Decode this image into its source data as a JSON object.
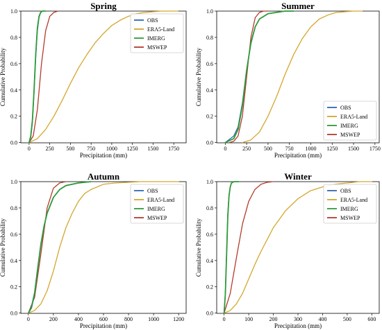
{
  "colors": {
    "OBS": "#2f66b3",
    "ERA5-Land": "#d4a62c",
    "IMERG": "#2f9a3a",
    "MSWEP": "#b33b2c"
  },
  "chart_data": [
    {
      "type": "line",
      "title": "Spring",
      "xlabel": "Precipitation (mm)",
      "ylabel": "Cumulative Probability",
      "xlim": [
        -100,
        1900
      ],
      "ylim": [
        0,
        1.0
      ],
      "xticks": [
        "0",
        "250",
        "500",
        "750",
        "1000",
        "1250",
        "1500",
        "1750"
      ],
      "xtick_values": [
        0,
        250,
        500,
        750,
        1000,
        1250,
        1500,
        1750
      ],
      "yticks": [
        "0.0",
        "0.2",
        "0.4",
        "0.6",
        "0.8",
        "1.0"
      ],
      "legend_position": "top-right",
      "series": [
        {
          "name": "OBS",
          "x": [
            0,
            20,
            40,
            60,
            80,
            100,
            120,
            140,
            160,
            200
          ],
          "y": [
            0.0,
            0.04,
            0.15,
            0.38,
            0.65,
            0.85,
            0.95,
            0.99,
            1.0,
            1.0
          ]
        },
        {
          "name": "ERA5-Land",
          "x": [
            0,
            100,
            200,
            300,
            400,
            500,
            600,
            700,
            800,
            900,
            1000,
            1100,
            1200,
            1300,
            1400,
            1500,
            1600,
            1700,
            1800
          ],
          "y": [
            0.0,
            0.03,
            0.1,
            0.2,
            0.32,
            0.45,
            0.57,
            0.67,
            0.76,
            0.83,
            0.89,
            0.93,
            0.96,
            0.98,
            0.99,
            0.995,
            1.0,
            1.0,
            1.0
          ]
        },
        {
          "name": "IMERG",
          "x": [
            0,
            20,
            40,
            60,
            80,
            100,
            120,
            140,
            160,
            200
          ],
          "y": [
            0.0,
            0.05,
            0.17,
            0.4,
            0.67,
            0.87,
            0.96,
            0.99,
            1.0,
            1.0
          ]
        },
        {
          "name": "MSWEP",
          "x": [
            0,
            50,
            100,
            150,
            200,
            250,
            300,
            350
          ],
          "y": [
            0.0,
            0.05,
            0.25,
            0.6,
            0.85,
            0.96,
            0.99,
            1.0
          ]
        }
      ]
    },
    {
      "type": "line",
      "title": "Summer",
      "xlabel": "Precipitation (mm)",
      "ylabel": "Cumulative Probability",
      "xlim": [
        -100,
        1800
      ],
      "ylim": [
        0,
        1.0
      ],
      "xticks": [
        "0",
        "250",
        "500",
        "750",
        "1000",
        "1250",
        "1500",
        "1750"
      ],
      "xtick_values": [
        0,
        250,
        500,
        750,
        1000,
        1250,
        1500,
        1750
      ],
      "yticks": [
        "0.0",
        "0.2",
        "0.4",
        "0.6",
        "0.8",
        "1.0"
      ],
      "legend_position": "bottom-right",
      "series": [
        {
          "name": "OBS",
          "x": [
            0,
            100,
            150,
            200,
            250,
            300,
            350,
            400,
            500,
            600,
            700,
            800
          ],
          "y": [
            0.0,
            0.05,
            0.12,
            0.3,
            0.55,
            0.75,
            0.88,
            0.94,
            0.98,
            0.99,
            1.0,
            1.0
          ]
        },
        {
          "name": "ERA5-Land",
          "x": [
            200,
            300,
            400,
            500,
            600,
            700,
            800,
            900,
            1000,
            1100,
            1200,
            1300,
            1400,
            1500,
            1600
          ],
          "y": [
            0.0,
            0.02,
            0.08,
            0.2,
            0.35,
            0.52,
            0.67,
            0.79,
            0.88,
            0.94,
            0.97,
            0.99,
            0.995,
            1.0,
            1.0
          ]
        },
        {
          "name": "IMERG",
          "x": [
            0,
            100,
            150,
            200,
            250,
            300,
            350,
            400,
            500,
            600,
            700,
            800
          ],
          "y": [
            0.0,
            0.03,
            0.1,
            0.28,
            0.55,
            0.76,
            0.88,
            0.94,
            0.98,
            0.99,
            1.0,
            1.0
          ]
        },
        {
          "name": "MSWEP",
          "x": [
            50,
            100,
            150,
            200,
            250,
            300,
            350,
            400,
            450,
            500
          ],
          "y": [
            0.0,
            0.01,
            0.05,
            0.2,
            0.5,
            0.8,
            0.95,
            0.99,
            1.0,
            1.0
          ]
        }
      ]
    },
    {
      "type": "line",
      "title": "Autumn",
      "xlabel": "Precipitation (mm)",
      "ylabel": "Cumulative Probability",
      "xlim": [
        -60,
        1260
      ],
      "ylim": [
        0,
        1.0
      ],
      "xticks": [
        "0",
        "200",
        "400",
        "600",
        "800",
        "1000",
        "1200"
      ],
      "xtick_values": [
        0,
        200,
        400,
        600,
        800,
        1000,
        1200
      ],
      "yticks": [
        "0.0",
        "0.2",
        "0.4",
        "0.6",
        "0.8",
        "1.0"
      ],
      "legend_position": "right",
      "series": [
        {
          "name": "OBS",
          "x": [
            0,
            25,
            50,
            75,
            100,
            125,
            150,
            200,
            250,
            300,
            400,
            500
          ],
          "y": [
            0.0,
            0.05,
            0.16,
            0.35,
            0.53,
            0.66,
            0.76,
            0.88,
            0.94,
            0.97,
            0.99,
            1.0
          ]
        },
        {
          "name": "ERA5-Land",
          "x": [
            0,
            50,
            100,
            150,
            200,
            250,
            300,
            350,
            400,
            450,
            500,
            600,
            700,
            800,
            900,
            1000,
            1100,
            1200
          ],
          "y": [
            0.0,
            0.02,
            0.07,
            0.17,
            0.32,
            0.5,
            0.65,
            0.76,
            0.85,
            0.91,
            0.94,
            0.98,
            0.99,
            0.995,
            1.0,
            1.0,
            1.0,
            1.0
          ]
        },
        {
          "name": "IMERG",
          "x": [
            0,
            25,
            50,
            75,
            100,
            125,
            150,
            200,
            250,
            300,
            400,
            500
          ],
          "y": [
            0.0,
            0.04,
            0.15,
            0.34,
            0.52,
            0.66,
            0.76,
            0.88,
            0.94,
            0.97,
            0.99,
            1.0
          ]
        },
        {
          "name": "MSWEP",
          "x": [
            0,
            50,
            100,
            150,
            200,
            250,
            300
          ],
          "y": [
            0.0,
            0.12,
            0.45,
            0.8,
            0.95,
            0.99,
            1.0
          ]
        }
      ]
    },
    {
      "type": "line",
      "title": "Winter",
      "xlabel": "Precipitation (mm)",
      "ylabel": "Cumulative Probability",
      "xlim": [
        -30,
        630
      ],
      "ylim": [
        0,
        1.0
      ],
      "xticks": [
        "0",
        "100",
        "200",
        "300",
        "400",
        "500",
        "600"
      ],
      "xtick_values": [
        0,
        100,
        200,
        300,
        400,
        500,
        600
      ],
      "yticks": [
        "0.0",
        "0.2",
        "0.4",
        "0.6",
        "0.8",
        "1.0"
      ],
      "legend_position": "right",
      "series": [
        {
          "name": "OBS",
          "x": [
            0,
            5,
            10,
            15,
            20,
            25,
            30,
            40,
            60
          ],
          "y": [
            0.0,
            0.15,
            0.45,
            0.75,
            0.9,
            0.96,
            0.99,
            1.0,
            1.0
          ]
        },
        {
          "name": "ERA5-Land",
          "x": [
            0,
            25,
            50,
            75,
            100,
            125,
            150,
            200,
            250,
            300,
            350,
            400,
            450,
            500,
            550,
            600
          ],
          "y": [
            0.0,
            0.02,
            0.07,
            0.15,
            0.26,
            0.37,
            0.47,
            0.65,
            0.78,
            0.87,
            0.93,
            0.96,
            0.98,
            0.99,
            1.0,
            1.0
          ]
        },
        {
          "name": "IMERG",
          "x": [
            0,
            5,
            10,
            15,
            20,
            25,
            30,
            40,
            60
          ],
          "y": [
            0.0,
            0.14,
            0.43,
            0.73,
            0.89,
            0.96,
            0.99,
            1.0,
            1.0
          ]
        },
        {
          "name": "MSWEP",
          "x": [
            0,
            25,
            50,
            75,
            100,
            125,
            150,
            175,
            200
          ],
          "y": [
            0.0,
            0.15,
            0.42,
            0.68,
            0.85,
            0.94,
            0.98,
            0.995,
            1.0
          ]
        }
      ]
    }
  ]
}
